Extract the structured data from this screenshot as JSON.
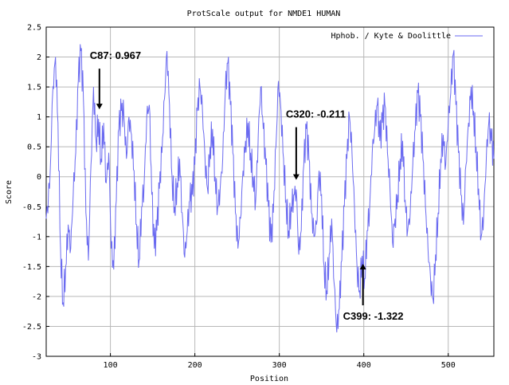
{
  "chart_data": {
    "type": "line",
    "title": "ProtScale output for NMDE1 HUMAN",
    "xlabel": "Position",
    "ylabel": "Score",
    "xlim": [
      24,
      554
    ],
    "ylim": [
      -3,
      2.5
    ],
    "xticks": [
      100,
      200,
      300,
      400,
      500
    ],
    "yticks": [
      -3,
      -2.5,
      -2,
      -1.5,
      -1,
      -0.5,
      0,
      0.5,
      1,
      1.5,
      2,
      2.5
    ],
    "xtick_labels": [
      "100",
      "200",
      "300",
      "400",
      "500"
    ],
    "ytick_labels": [
      "-3",
      "-2.5",
      "-2",
      "-1.5",
      "-1",
      "-0.5",
      "0",
      "0.5",
      "1",
      "1.5",
      "2",
      "2.5"
    ],
    "grid": true,
    "legend_position": "top-right",
    "line_color": "#6a6af0",
    "series": [
      {
        "name": "Hphob. / Kyte & Doolittle",
        "x": [
          24,
          28,
          32,
          35,
          38,
          41,
          44,
          47,
          50,
          53,
          56,
          59,
          62,
          65,
          68,
          71,
          74,
          77,
          80,
          83,
          86,
          89,
          92,
          95,
          98,
          101,
          104,
          107,
          110,
          113,
          116,
          119,
          122,
          125,
          128,
          131,
          134,
          137,
          140,
          143,
          146,
          149,
          152,
          155,
          158,
          161,
          164,
          167,
          170,
          173,
          176,
          179,
          182,
          185,
          188,
          191,
          194,
          197,
          200,
          203,
          206,
          209,
          212,
          215,
          218,
          221,
          224,
          227,
          230,
          233,
          236,
          239,
          242,
          245,
          248,
          251,
          254,
          257,
          260,
          263,
          266,
          269,
          272,
          275,
          278,
          281,
          284,
          287,
          290,
          293,
          296,
          299,
          302,
          305,
          308,
          311,
          314,
          317,
          320,
          323,
          326,
          329,
          332,
          335,
          338,
          341,
          344,
          347,
          350,
          353,
          356,
          359,
          362,
          365,
          368,
          371,
          374,
          377,
          380,
          383,
          386,
          389,
          392,
          395,
          398,
          401,
          404,
          407,
          410,
          413,
          416,
          419,
          422,
          425,
          428,
          431,
          434,
          437,
          440,
          443,
          446,
          449,
          452,
          455,
          458,
          461,
          464,
          467,
          470,
          473,
          476,
          479,
          482,
          485,
          488,
          491,
          494,
          497,
          500,
          503,
          506,
          509,
          512,
          515,
          518,
          521,
          524,
          527,
          530,
          533,
          536,
          539,
          542,
          545,
          548,
          551,
          554
        ],
        "values": [
          -0.7,
          -0.2,
          1.5,
          2.0,
          0.9,
          -1.2,
          -2.1,
          -1.5,
          -0.8,
          -1.2,
          -0.3,
          0.4,
          1.6,
          2.1,
          1.3,
          -0.6,
          -1.4,
          0.2,
          1.5,
          0.6,
          0.967,
          0.3,
          0.9,
          -0.1,
          0.4,
          -1.2,
          -1.55,
          -0.4,
          0.8,
          1.1,
          1.0,
          0.3,
          1.0,
          0.7,
          0.1,
          -0.8,
          -1.4,
          -0.5,
          -0.1,
          1.0,
          1.2,
          -0.3,
          -1.2,
          -0.9,
          -0.2,
          0.4,
          1.3,
          2.1,
          1.2,
          0.0,
          -0.5,
          -0.1,
          0.3,
          -0.6,
          -1.35,
          -0.9,
          -0.4,
          -0.3,
          0.2,
          1.1,
          1.5,
          1.1,
          0.3,
          -0.2,
          0.5,
          0.8,
          0.0,
          -0.5,
          -0.2,
          0.3,
          1.4,
          1.9,
          1.2,
          0.4,
          -0.6,
          -1.2,
          -0.7,
          0.1,
          0.6,
          0.9,
          0.4,
          0.0,
          -0.4,
          0.7,
          1.5,
          0.8,
          0.2,
          -0.5,
          -1.1,
          -0.6,
          0.5,
          1.6,
          1.1,
          0.3,
          -0.4,
          -0.9,
          -0.5,
          -0.3,
          -0.211,
          -1.3,
          -0.9,
          0.2,
          0.8,
          0.3,
          -0.6,
          -1.0,
          -0.8,
          0.1,
          -0.3,
          -1.5,
          -1.9,
          -1.3,
          -0.7,
          -1.8,
          -2.6,
          -2.2,
          -1.4,
          -0.5,
          0.3,
          1.0,
          0.4,
          -0.5,
          -1.5,
          -1.9,
          -1.322,
          -1.7,
          -0.9,
          -0.5,
          0.4,
          0.8,
          1.2,
          0.6,
          0.9,
          1.2,
          0.4,
          -0.2,
          -1.1,
          -0.7,
          -0.3,
          0.3,
          0.6,
          -0.4,
          -0.9,
          -0.6,
          0.2,
          0.8,
          1.4,
          1.0,
          0.3,
          -0.5,
          -1.2,
          -1.7,
          -2.05,
          -1.3,
          -0.6,
          0.3,
          0.7,
          0.2,
          0.9,
          1.4,
          2.05,
          1.2,
          0.4,
          -0.3,
          -0.8,
          0.2,
          0.9,
          1.5,
          1.1,
          0.5,
          -0.2,
          -1.0,
          -0.6,
          0.3,
          0.9,
          0.6,
          0.3
        ]
      }
    ],
    "annotations": [
      {
        "text": "C87: 0.967",
        "x": 87,
        "y": 0.967,
        "arrow": "down"
      },
      {
        "text": "C320: -0.211",
        "x": 320,
        "y": -0.211,
        "arrow": "down"
      },
      {
        "text": "C399: -1.322",
        "x": 399,
        "y": -1.322,
        "arrow": "up"
      }
    ]
  }
}
